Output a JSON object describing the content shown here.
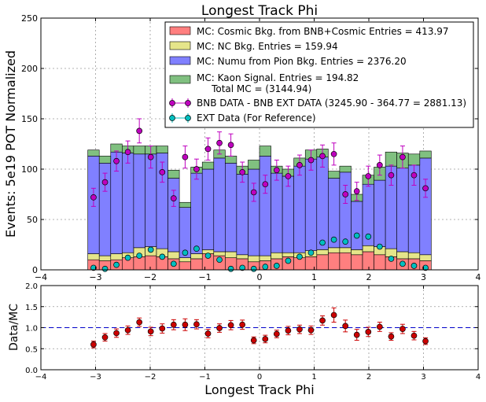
{
  "chart_data": [
    {
      "type": "bar",
      "stacked": true,
      "title": "Longest Track Phi",
      "xlabel": "",
      "ylabel": "Events: 5e19 POT Normalized",
      "xlim": [
        -4,
        4
      ],
      "ylim": [
        0,
        250
      ],
      "xticks": [
        "−4",
        "−3",
        "−2",
        "−1",
        "0",
        "1",
        "2",
        "3",
        "4"
      ],
      "yticks": [
        "0",
        "50",
        "100",
        "150",
        "200",
        "250"
      ],
      "grid": true,
      "legend_position": "top-right",
      "bin_edges": [
        -3.1416,
        -2.9322,
        -2.7227,
        -2.5133,
        -2.3038,
        -2.0944,
        -1.885,
        -1.6755,
        -1.4661,
        -1.2566,
        -1.0472,
        -0.8378,
        -0.6283,
        -0.4189,
        -0.2094,
        0.0,
        0.2094,
        0.4189,
        0.6283,
        0.8378,
        1.0472,
        1.2566,
        1.4661,
        1.6755,
        1.885,
        2.0944,
        2.3038,
        2.5133,
        2.7227,
        2.9322,
        3.1416
      ],
      "series": [
        {
          "name": "MC: Cosmic Bkg. from BNB+Cosmic Entries = 413.97",
          "color": "#ff7f7f",
          "values": [
            10,
            9,
            10,
            12,
            13,
            14,
            13,
            11,
            8,
            11,
            16,
            14,
            12,
            11,
            8,
            9,
            11,
            13,
            12,
            13,
            15,
            17,
            17,
            15,
            18,
            15,
            13,
            11,
            11,
            9
          ]
        },
        {
          "name": "MC: NC Bkg. Entries = 159.94",
          "color": "#e5e58a",
          "values": [
            6,
            5,
            6,
            5,
            9,
            9,
            8,
            7,
            4,
            5,
            4,
            4,
            6,
            4,
            6,
            5,
            6,
            4,
            5,
            6,
            5,
            5,
            5,
            5,
            6,
            8,
            8,
            7,
            6,
            6
          ]
        },
        {
          "name": "MC: Numu from Pion Bkg. Entries = 2376.20",
          "color": "#8080ff",
          "values": [
            97,
            92,
            101,
            99,
            93,
            92,
            95,
            73,
            50,
            80,
            80,
            93,
            88,
            80,
            86,
            99,
            79,
            76,
            86,
            91,
            92,
            69,
            75,
            48,
            61,
            66,
            82,
            83,
            87,
            96
          ]
        },
        {
          "name": "MC: Kaon Signal. Entries = 194.82\n     Total MC = (3144.94)",
          "color": "#80c080",
          "values": [
            6,
            7,
            8,
            7,
            8,
            8,
            7,
            8,
            5,
            6,
            7,
            8,
            7,
            8,
            9,
            10,
            7,
            7,
            8,
            9,
            8,
            7,
            6,
            7,
            9,
            13,
            14,
            15,
            11,
            7
          ]
        }
      ]
    },
    {
      "type": "scatter",
      "subplot": "main",
      "series": [
        {
          "name": "BNB DATA - BNB EXT DATA (3245.90 - 364.77 = 2881.13)",
          "color": "#bf00bf",
          "x": [
            -3.037,
            -2.827,
            -2.618,
            -2.409,
            -2.199,
            -1.99,
            -1.78,
            -1.571,
            -1.361,
            -1.152,
            -0.942,
            -0.733,
            -0.524,
            -0.314,
            -0.105,
            0.105,
            0.314,
            0.524,
            0.733,
            0.942,
            1.152,
            1.361,
            1.571,
            1.78,
            1.99,
            2.199,
            2.409,
            2.618,
            2.827,
            3.037
          ],
          "y": [
            72,
            87,
            108,
            117,
            138,
            112,
            97,
            71,
            112,
            100,
            120,
            126,
            124,
            97,
            77,
            85,
            99,
            93,
            104,
            109,
            113,
            115,
            75,
            78,
            93,
            104,
            94,
            112,
            94,
            81
          ],
          "yerr": [
            9,
            9,
            10,
            11,
            12,
            11,
            10,
            8,
            11,
            10,
            11,
            11,
            11,
            10,
            9,
            9,
            10,
            10,
            10,
            10,
            11,
            11,
            9,
            9,
            10,
            10,
            10,
            11,
            10,
            9
          ]
        },
        {
          "name": "EXT Data (For Reference)",
          "color": "#00bfbf",
          "x": [
            -3.037,
            -2.827,
            -2.618,
            -2.409,
            -2.199,
            -1.99,
            -1.78,
            -1.571,
            -1.361,
            -1.152,
            -0.942,
            -0.733,
            -0.524,
            -0.314,
            -0.105,
            0.105,
            0.314,
            0.524,
            0.733,
            0.942,
            1.152,
            1.361,
            1.571,
            1.78,
            1.99,
            2.199,
            2.409,
            2.618,
            2.827,
            3.037
          ],
          "y": [
            2,
            1,
            5,
            12,
            14,
            20,
            13,
            6,
            17,
            21,
            14,
            10,
            1,
            2,
            1,
            3,
            4,
            9,
            13,
            17,
            27,
            30,
            28,
            34,
            33,
            23,
            11,
            6,
            4,
            2
          ],
          "yerr": [
            0,
            0,
            0,
            0,
            0,
            0,
            0,
            0,
            0,
            0,
            0,
            0,
            0,
            0,
            0,
            0,
            0,
            0,
            0,
            0,
            0,
            0,
            0,
            0,
            0,
            0,
            0,
            0,
            0,
            0
          ]
        }
      ]
    },
    {
      "type": "scatter",
      "subplot": "ratio",
      "xlabel": "Longest Track Phi",
      "ylabel": "Data/MC",
      "xlim": [
        -4,
        4
      ],
      "ylim": [
        0,
        2
      ],
      "xticks": [
        "−4",
        "−3",
        "−2",
        "−1",
        "0",
        "1",
        "2",
        "3",
        "4"
      ],
      "yticks": [
        "0.0",
        "0.5",
        "1.0",
        "1.5",
        "2.0"
      ],
      "grid": true,
      "reference_line": 1.0,
      "series": [
        {
          "name": "",
          "color": "#cc0000",
          "x": [
            -3.037,
            -2.827,
            -2.618,
            -2.409,
            -2.199,
            -1.99,
            -1.78,
            -1.571,
            -1.361,
            -1.152,
            -0.942,
            -0.733,
            -0.524,
            -0.314,
            -0.105,
            0.105,
            0.314,
            0.524,
            0.733,
            0.942,
            1.152,
            1.361,
            1.571,
            1.78,
            1.99,
            2.199,
            2.409,
            2.618,
            2.827,
            3.037
          ],
          "y": [
            0.6,
            0.77,
            0.87,
            0.94,
            1.13,
            0.91,
            0.98,
            1.07,
            1.07,
            1.08,
            0.86,
            0.99,
            1.06,
            1.07,
            0.7,
            0.73,
            0.85,
            0.93,
            0.96,
            0.94,
            1.17,
            1.3,
            1.04,
            0.83,
            0.9,
            1.02,
            0.79,
            0.97,
            0.81,
            0.68
          ],
          "yerr": [
            0.08,
            0.09,
            0.1,
            0.1,
            0.1,
            0.1,
            0.11,
            0.12,
            0.14,
            0.11,
            0.1,
            0.1,
            0.11,
            0.11,
            0.08,
            0.09,
            0.09,
            0.1,
            0.1,
            0.1,
            0.11,
            0.17,
            0.14,
            0.13,
            0.11,
            0.11,
            0.09,
            0.11,
            0.1,
            0.08
          ]
        }
      ]
    }
  ]
}
